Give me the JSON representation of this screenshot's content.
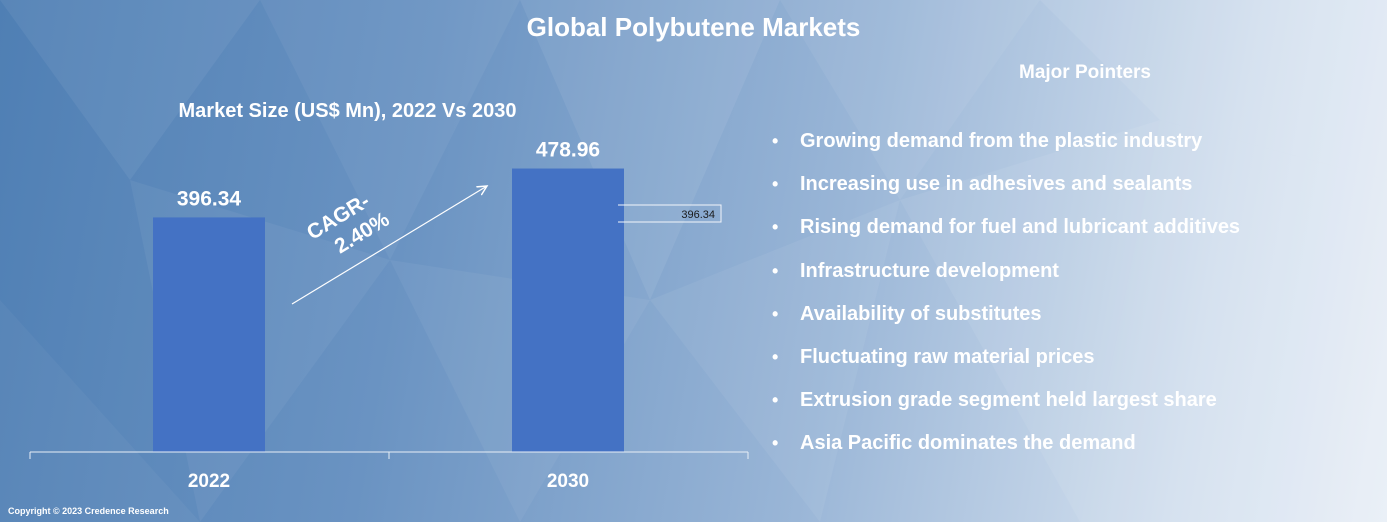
{
  "page": {
    "title": "Global Polybutene Markets",
    "copyright": "Copyright © 2023 Credence Research"
  },
  "chart_data": {
    "type": "bar",
    "title": "Market Size (US$ Mn), 2022 Vs 2030",
    "categories": [
      "2022",
      "2030"
    ],
    "values": [
      396.34,
      478.96
    ],
    "value_labels": [
      "396.34",
      "478.96"
    ],
    "xlabel": "",
    "ylabel": "",
    "ylim": [
      0,
      490
    ],
    "bar_color": "#4472c4",
    "annotation": {
      "text_line1": "CAGR-",
      "text_line2": "2.40%"
    },
    "callout_label": "396.34",
    "grid": false
  },
  "pointers": {
    "heading": "Major Pointers",
    "bullet": "•",
    "items": [
      "Growing demand from the plastic industry",
      "Increasing use in adhesives and sealants",
      "Rising demand for fuel and lubricant additives",
      "Infrastructure development",
      "Availability of substitutes",
      "Fluctuating raw material prices",
      "Extrusion grade segment held largest share",
      "Asia Pacific dominates the demand"
    ]
  }
}
